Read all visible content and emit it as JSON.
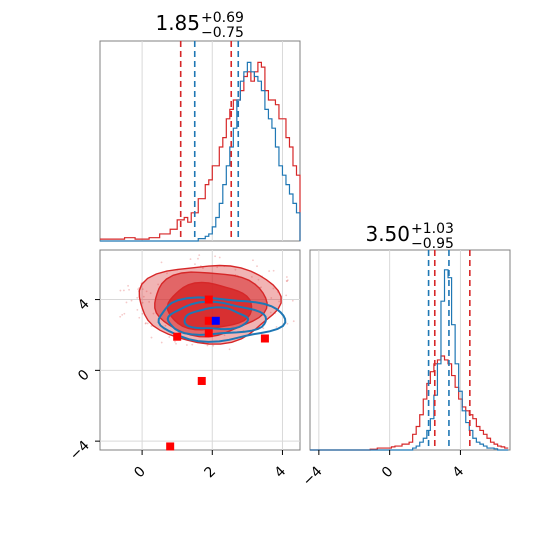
{
  "chart_data": {
    "type": "corner",
    "colors": {
      "red": "#d62728",
      "blue": "#1f77b4",
      "marker_red": "#ff0000",
      "marker_blue": "#0000ff"
    },
    "grid": true,
    "panels": [
      {
        "id": "hist-x",
        "type": "histogram",
        "title": {
          "value": "1.85",
          "plus": "+0.69",
          "minus": "−0.75"
        },
        "xlim": [
          -1.2,
          4.5
        ],
        "show_x_ticks": false,
        "x_gridlines": [
          0,
          2,
          4
        ],
        "series": [
          {
            "name": "",
            "color": "#d62728",
            "step": 0.1,
            "start": -1.2,
            "counts": [
              0.4,
              0.4,
              0.4,
              0.4,
              0.4,
              0.4,
              0.4,
              0.7,
              0.7,
              0.7,
              0.4,
              0.4,
              0.4,
              0.4,
              0.7,
              0.7,
              0.7,
              1.5,
              1.5,
              1.5,
              2.5,
              2.5,
              4.5,
              4.5,
              5,
              4,
              6,
              6,
              9,
              9,
              12,
              13,
              16,
              16,
              20,
              22,
              26,
              28,
              30,
              30,
              32,
              35,
              36,
              34,
              36,
              38,
              37,
              32,
              30,
              30,
              29,
              26,
              26,
              22,
              20,
              16,
              14,
              10,
              8,
              7,
              5,
              4,
              3,
              2,
              2,
              1,
              1,
              0.7,
              0.4,
              0.3,
              0.3,
              0.2,
              0.2,
              0.1,
              0.1,
              0.1,
              0.1,
              0,
              0,
              0,
              0,
              0,
              0,
              0,
              0,
              0,
              0
            ],
            "quantiles": [
              1.1,
              2.54
            ]
          },
          {
            "name": "",
            "color": "#1f77b4",
            "step": 0.1,
            "start": -1.2,
            "counts": [
              0,
              0,
              0,
              0,
              0,
              0,
              0,
              0,
              0,
              0,
              0,
              0,
              0,
              0,
              0,
              0,
              0,
              0,
              0,
              0,
              0,
              0,
              0,
              0,
              0,
              0,
              0,
              0,
              0.5,
              0.5,
              1,
              1.5,
              3,
              5,
              8,
              12,
              16,
              20,
              24,
              30,
              34,
              36,
              38,
              36,
              35,
              34,
              32,
              28,
              26,
              24,
              20,
              16,
              14,
              12,
              10,
              8,
              6,
              4.5,
              3,
              2,
              1.5,
              1,
              0.5,
              0.5,
              0.3,
              0.3,
              0.2,
              0.2,
              0.1,
              0.1,
              0,
              0,
              0,
              0,
              0,
              0,
              0,
              0,
              0,
              0,
              0,
              0,
              0,
              0,
              0,
              0,
              0
            ],
            "quantiles": [
              1.5,
              2.74
            ]
          }
        ],
        "peak": 40
      },
      {
        "id": "scatter-xy",
        "type": "2d",
        "xlim": [
          -1.2,
          4.5
        ],
        "ylim": [
          -4.5,
          6.8
        ],
        "x_ticks": [
          0,
          2,
          4
        ],
        "y_ticks": [
          -4,
          0,
          4
        ],
        "red_contours": [
          {
            "cx": 1.9,
            "cy": 3.8,
            "rx": 2.0,
            "ry": 2.2,
            "opacity": 0.35
          },
          {
            "cx": 1.9,
            "cy": 3.8,
            "rx": 1.6,
            "ry": 1.8,
            "opacity": 0.55
          },
          {
            "cx": 1.9,
            "cy": 3.6,
            "rx": 1.2,
            "ry": 1.3,
            "opacity": 0.85
          }
        ],
        "blue_contours": [
          {
            "cx": 2.2,
            "cy": 2.9,
            "rx": 1.8,
            "ry": 1.2
          },
          {
            "cx": 2.1,
            "cy": 2.9,
            "rx": 1.4,
            "ry": 0.9
          },
          {
            "cx": 2.1,
            "cy": 2.9,
            "rx": 0.9,
            "ry": 0.6
          }
        ],
        "red_markers": [
          {
            "x": 1.0,
            "y": 1.9
          },
          {
            "x": 1.9,
            "y": 2.8
          },
          {
            "x": 1.9,
            "y": 2.1
          },
          {
            "x": 1.9,
            "y": 4.0
          },
          {
            "x": 3.5,
            "y": 1.8
          },
          {
            "x": 1.7,
            "y": -0.6
          },
          {
            "x": 0.8,
            "y": -4.3
          }
        ],
        "blue_marker": {
          "x": 2.1,
          "y": 2.8
        }
      },
      {
        "id": "hist-y",
        "type": "histogram",
        "title": {
          "value": "3.50",
          "plus": "+1.03",
          "minus": "−0.95"
        },
        "xlim": [
          -4.5,
          6.8
        ],
        "x_ticks": [
          -4,
          0,
          4
        ],
        "series": [
          {
            "name": "",
            "color": "#d62728",
            "step": 0.2,
            "start": -4.5,
            "counts": [
              0,
              0,
              0,
              0,
              0,
              0,
              0,
              0,
              0,
              0,
              0,
              0,
              0,
              0,
              0,
              0,
              0,
              0.2,
              0.2,
              0.5,
              0.5,
              0.5,
              0.5,
              0.8,
              1,
              1,
              1.5,
              1.5,
              2,
              4,
              6,
              9,
              13,
              17,
              20,
              22,
              23,
              24,
              23,
              22,
              19,
              16,
              13,
              11,
              10,
              9,
              8,
              6,
              5,
              4,
              3,
              2,
              1.5,
              1,
              0.8,
              0.5
            ],
            "quantiles": [
              2.55,
              4.53
            ]
          },
          {
            "name": "",
            "color": "#1f77b4",
            "step": 0.2,
            "start": -4.5,
            "counts": [
              0,
              0,
              0,
              0,
              0,
              0,
              0,
              0,
              0,
              0,
              0,
              0,
              0,
              0,
              0,
              0,
              0,
              0,
              0,
              0,
              0,
              0,
              0,
              0,
              0,
              0,
              0,
              0,
              0,
              0.5,
              1,
              2,
              3,
              5,
              8,
              14,
              22,
              38,
              46,
              44,
              32,
              22,
              15,
              10,
              7,
              5,
              3,
              2,
              1.5,
              1,
              0.5,
              0.5,
              0.3,
              0,
              0,
              0
            ],
            "quantiles": [
              2.2,
              3.35
            ]
          }
        ],
        "peak": 48
      }
    ]
  }
}
